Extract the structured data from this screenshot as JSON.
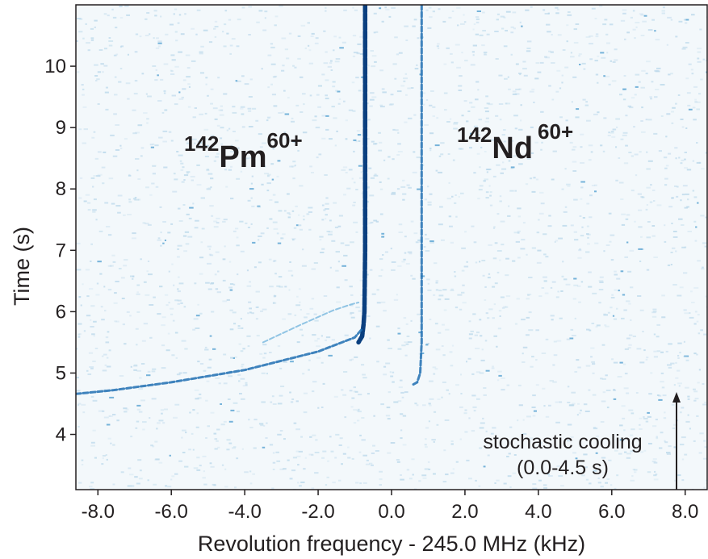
{
  "chart_data": {
    "type": "heatmap",
    "xlabel": "Revolution frequency - 245.0 MHz (kHz)",
    "ylabel": "Time (s)",
    "xlim": [
      -8.6,
      8.6
    ],
    "ylim": [
      3.1,
      11.0
    ],
    "x_ticks": [
      -8.0,
      -6.0,
      -4.0,
      -2.0,
      0.0,
      2.0,
      4.0,
      6.0,
      8.0
    ],
    "x_tick_labels": [
      "-8.0",
      "-6.0",
      "-4.0",
      "-2.0",
      "0.0",
      "2.0",
      "4.0",
      "6.0",
      "8.0"
    ],
    "y_ticks": [
      4,
      5,
      6,
      7,
      8,
      9,
      10
    ],
    "y_tick_labels": [
      "4",
      "5",
      "6",
      "7",
      "8",
      "9",
      "10"
    ],
    "colors": {
      "background": "#f3f8fb",
      "noise_light": "#b9d7ea",
      "noise_mid": "#5fa7d4",
      "trace_dark": "#0a3f7f",
      "trace_mid": "#1f6fb2",
      "trace_light": "#6fb3dc"
    },
    "series": [
      {
        "name": "142Pm60+",
        "x": [
          -0.72,
          -0.72,
          -0.72,
          -0.73,
          -0.74,
          -0.76,
          -0.8,
          -0.9
        ],
        "y": [
          11.0,
          9.0,
          7.0,
          6.4,
          6.0,
          5.8,
          5.6,
          5.5
        ],
        "intensity": "high"
      },
      {
        "name": "142Nd60+",
        "x": [
          0.82,
          0.82,
          0.82,
          0.82,
          0.78,
          0.7,
          0.55
        ],
        "y": [
          11.0,
          9.0,
          7.0,
          5.5,
          5.0,
          4.85,
          4.8
        ],
        "intensity": "medium"
      },
      {
        "name": "cooling-tail-upper",
        "x": [
          -8.6,
          -7.6,
          -6.0,
          -4.0,
          -2.0,
          -1.0,
          -0.8
        ],
        "y": [
          4.66,
          4.72,
          4.85,
          5.05,
          5.35,
          5.58,
          5.72
        ],
        "intensity": "medium"
      },
      {
        "name": "cooling-tail-lower",
        "x": [
          -3.5,
          -2.5,
          -1.6,
          -1.1,
          -0.9
        ],
        "y": [
          5.5,
          5.78,
          6.02,
          6.12,
          6.15
        ],
        "intensity": "low"
      }
    ],
    "annotations": {
      "pm": {
        "mass": "142",
        "symbol": "Pm",
        "charge": "60+"
      },
      "nd": {
        "mass": "142",
        "symbol": "Nd",
        "charge": "60+"
      },
      "cooling_line1": "stochastic cooling",
      "cooling_line2": "(0.0-4.5 s)"
    },
    "grid": false
  }
}
